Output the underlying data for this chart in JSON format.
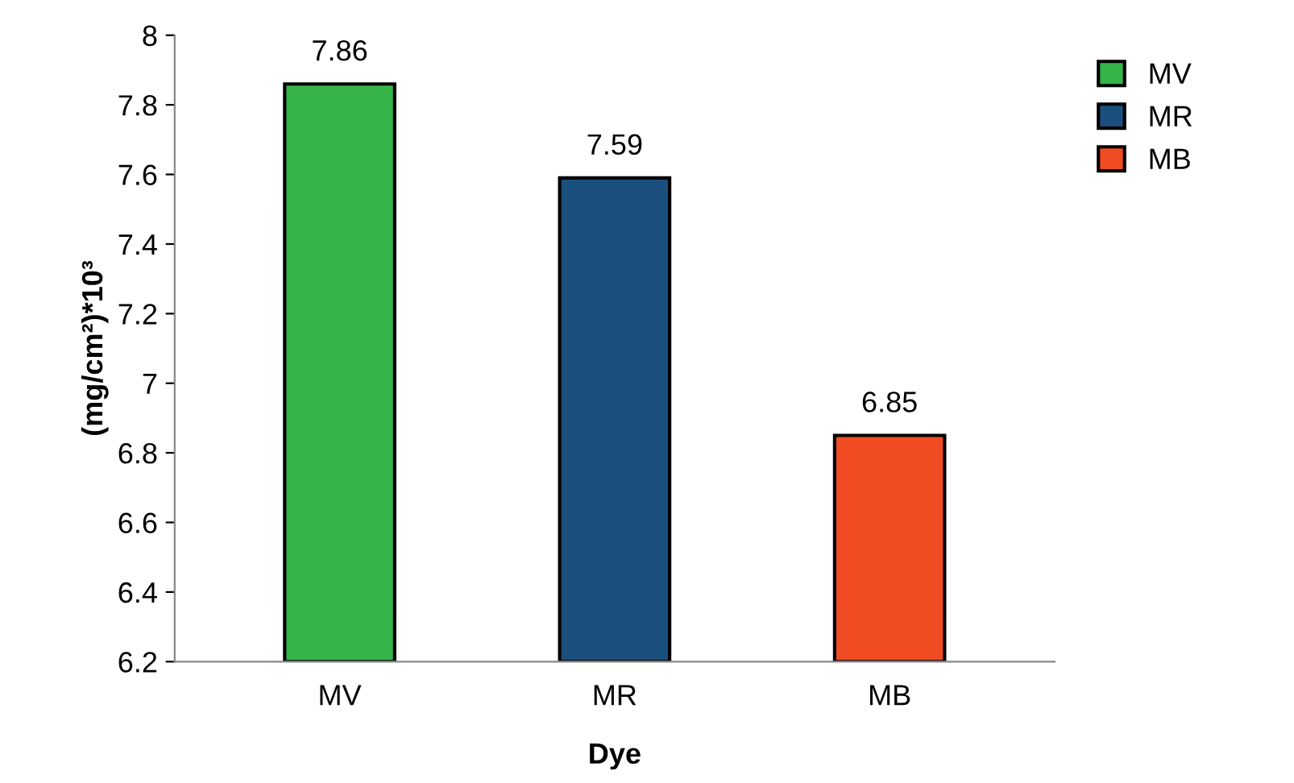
{
  "chart_data": {
    "type": "bar",
    "xlabel": "Dye",
    "ylabel": "(mg/cm²)*10³",
    "categories": [
      "MV",
      "MR",
      "MB"
    ],
    "series": [
      {
        "name": "MV",
        "color": "#35b44a",
        "values": [
          7.86,
          null,
          null
        ]
      },
      {
        "name": "MR",
        "color": "#1b4f7e",
        "values": [
          null,
          7.59,
          null
        ]
      },
      {
        "name": "MB",
        "color": "#f04b23",
        "values": [
          null,
          null,
          6.85
        ]
      }
    ],
    "ylim": [
      6.2,
      8
    ],
    "yticks": [
      6.2,
      6.4,
      6.6,
      6.8,
      7,
      7.2,
      7.4,
      7.6,
      7.8,
      8
    ],
    "data_labels": true,
    "legend": "top right",
    "grid": false
  }
}
